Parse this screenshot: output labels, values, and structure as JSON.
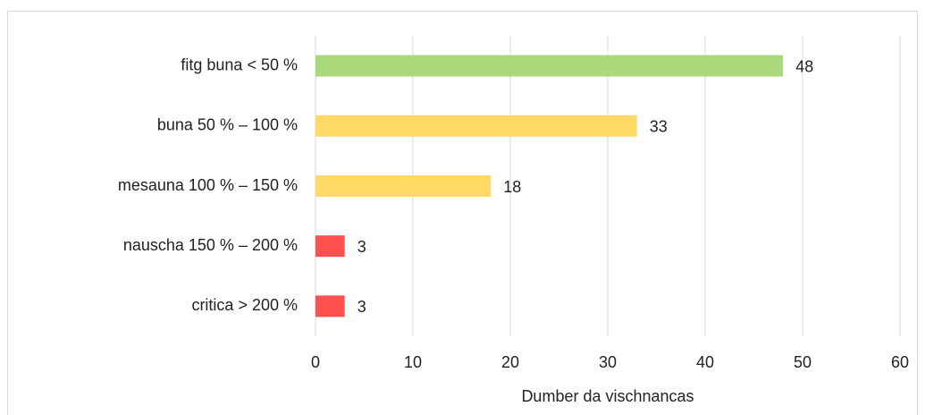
{
  "chart_data": {
    "type": "bar",
    "orientation": "horizontal",
    "categories": [
      "fitg buna < 50 %",
      "buna 50 % – 100 %",
      "mesauna 100 % – 150 %",
      "nauscha 150 % – 200 %",
      "critica > 200 %"
    ],
    "values": [
      48,
      33,
      18,
      3,
      3
    ],
    "colors": [
      "#a9d97a",
      "#ffd966",
      "#ffd966",
      "#ff5050",
      "#ff5050"
    ],
    "x_label": "Dumber da vischnancas",
    "xlim": [
      0,
      60
    ],
    "xticks": [
      0,
      10,
      20,
      30,
      40,
      50,
      60
    ],
    "grid": true
  }
}
